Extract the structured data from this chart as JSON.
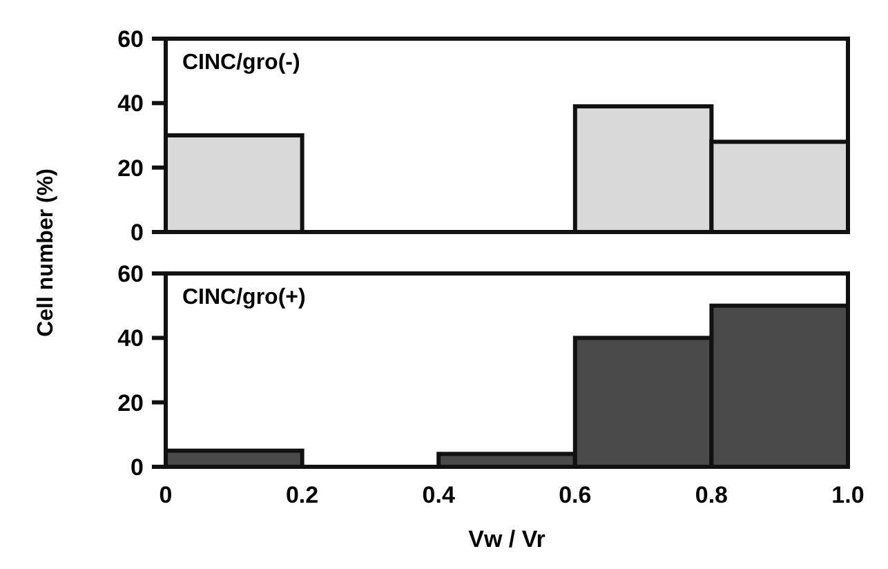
{
  "chart_data": [
    {
      "type": "histogram",
      "title": "CINC/gro(-)",
      "ylabel": "Cell number (%)",
      "bins": [
        0,
        0.2,
        0.4,
        0.6,
        0.8,
        1.0
      ],
      "values": [
        30,
        0,
        0,
        39,
        28
      ],
      "color": "#d9d9d9",
      "xlim": [
        0,
        1
      ],
      "ylim": [
        0,
        60
      ],
      "yticks": [
        0,
        20,
        40,
        60
      ],
      "tick_labels": "y"
    },
    {
      "type": "histogram",
      "title": "CINC/gro(+)",
      "xlabel": "Vw / Vr",
      "bins": [
        0,
        0.2,
        0.4,
        0.6,
        0.8,
        1.0
      ],
      "values": [
        5,
        0,
        4,
        40,
        50
      ],
      "color": "#4a4a4a",
      "xlim": [
        0,
        1
      ],
      "ylim": [
        0,
        60
      ],
      "yticks": [
        0,
        20,
        40,
        60
      ],
      "xticks": [
        0,
        0.2,
        0.4,
        0.6,
        0.8,
        {
          "value": 1,
          "label": "1.0"
        }
      ]
    }
  ]
}
